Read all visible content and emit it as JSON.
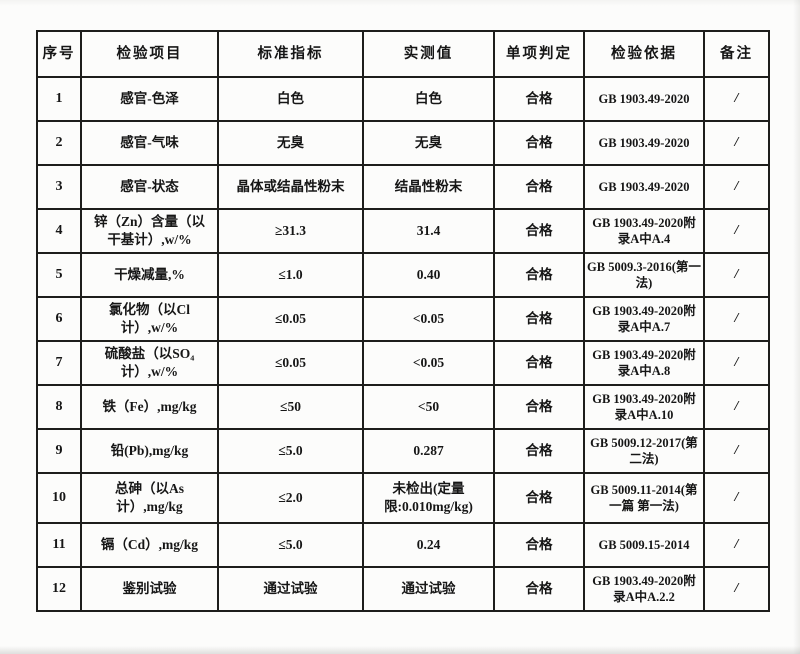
{
  "table": {
    "columns": [
      "序号",
      "检验项目",
      "标准指标",
      "实测值",
      "单项判定",
      "检验依据",
      "备注"
    ],
    "rows": [
      [
        "1",
        "感官-色泽",
        "白色",
        "白色",
        "合格",
        "GB 1903.49-2020",
        "/"
      ],
      [
        "2",
        "感官-气味",
        "无臭",
        "无臭",
        "合格",
        "GB 1903.49-2020",
        "/"
      ],
      [
        "3",
        "感官-状态",
        "晶体或结晶性粉末",
        "结晶性粉末",
        "合格",
        "GB 1903.49-2020",
        "/"
      ],
      [
        "4",
        "锌（Zn）含量（以干基计）,w/%",
        "≥31.3",
        "31.4",
        "合格",
        "GB 1903.49-2020附录A中A.4",
        "/"
      ],
      [
        "5",
        "干燥减量,%",
        "≤1.0",
        "0.40",
        "合格",
        "GB 5009.3-2016(第一法)",
        "/"
      ],
      [
        "6",
        "氯化物（以Cl计）,w/%",
        "≤0.05",
        "<0.05",
        "合格",
        "GB 1903.49-2020附录A中A.7",
        "/"
      ],
      [
        "7",
        "硫酸盐（以SO₄计）,w/%",
        "≤0.05",
        "<0.05",
        "合格",
        "GB 1903.49-2020附录A中A.8",
        "/"
      ],
      [
        "8",
        "铁（Fe）,mg/kg",
        "≤50",
        "<50",
        "合格",
        "GB 1903.49-2020附录A中A.10",
        "/"
      ],
      [
        "9",
        "铅(Pb),mg/kg",
        "≤5.0",
        "0.287",
        "合格",
        "GB 5009.12-2017(第二法)",
        "/"
      ],
      [
        "10",
        "总砷（以As计）,mg/kg",
        "≤2.0",
        "未检出(定量限:0.010mg/kg)",
        "合格",
        "GB 5009.11-2014(第一篇 第一法)",
        "/"
      ],
      [
        "11",
        "镉（Cd）,mg/kg",
        "≤5.0",
        "0.24",
        "合格",
        "GB 5009.15-2014",
        "/"
      ],
      [
        "12",
        "鉴别试验",
        "通过试验",
        "通过试验",
        "合格",
        "GB 1903.49-2020附录A中A.2.2",
        "/"
      ]
    ],
    "cell_names": [
      "cell-seq-no",
      "cell-test-item",
      "cell-standard-index",
      "cell-measured-value",
      "cell-judgment",
      "cell-test-basis",
      "cell-remark"
    ]
  }
}
